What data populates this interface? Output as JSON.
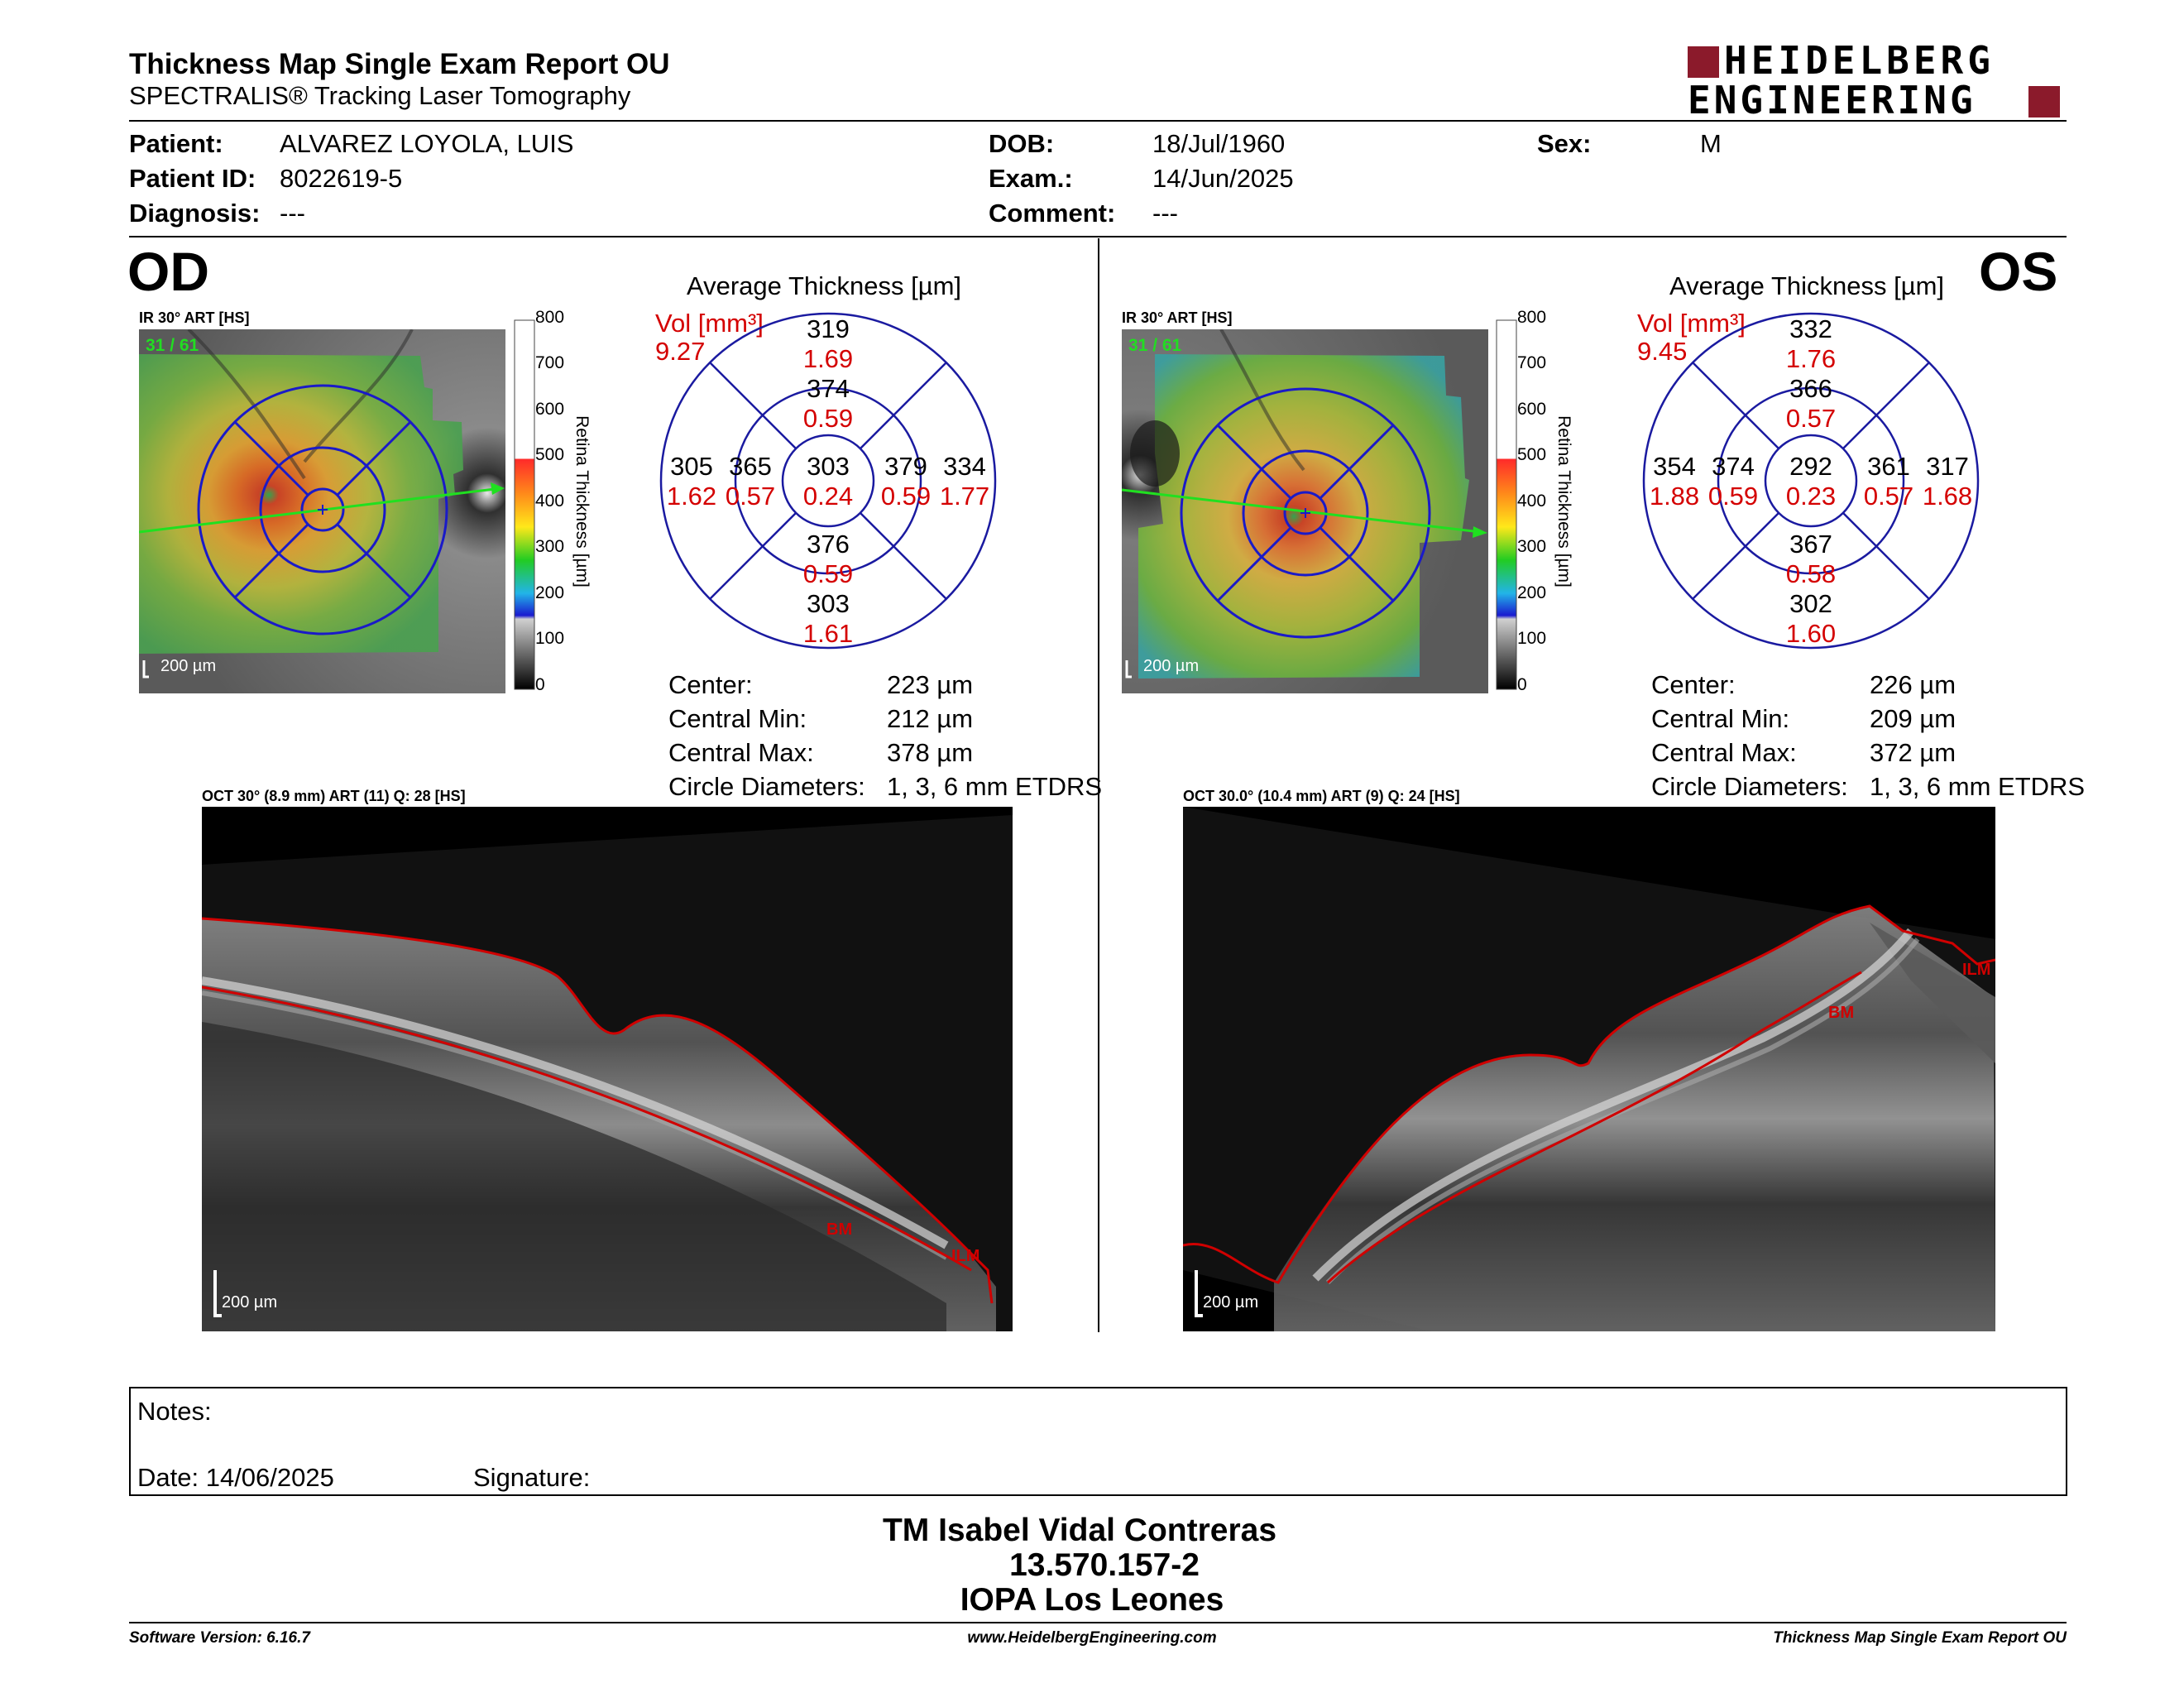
{
  "header": {
    "title": "Thickness Map Single Exam Report OU",
    "subtitle": "SPECTRALIS® Tracking Laser Tomography",
    "logo_line1": "HEIDELBERG",
    "logo_line2": "ENGINEERING",
    "logo_color": "#8b1a2b"
  },
  "patient": {
    "patient_label": "Patient:",
    "patient_value": "ALVAREZ LOYOLA, LUIS",
    "id_label": "Patient ID:",
    "id_value": "8022619-5",
    "diagnosis_label": "Diagnosis:",
    "diagnosis_value": "---",
    "dob_label": "DOB:",
    "dob_value": "18/Jul/1960",
    "exam_label": "Exam.:",
    "exam_value": "14/Jun/2025",
    "comment_label": "Comment:",
    "comment_value": "---",
    "sex_label": "Sex:",
    "sex_value": "M"
  },
  "od": {
    "eye": "OD",
    "ir_caption": "IR 30° ART [HS]",
    "frames": "31 / 61",
    "scale": "200 µm",
    "avg_title": "Average Thickness [µm]",
    "vol_label": "Vol [mm³]",
    "vol_value": "9.27",
    "etdrs": {
      "center": [
        "303",
        "0.24"
      ],
      "inner_sup": [
        "374",
        "0.59"
      ],
      "inner_inf": [
        "376",
        "0.59"
      ],
      "inner_left": [
        "365",
        "0.57"
      ],
      "inner_right": [
        "379",
        "0.59"
      ],
      "outer_sup": [
        "319",
        "1.69"
      ],
      "outer_inf": [
        "303",
        "1.61"
      ],
      "outer_left": [
        "305",
        "1.62"
      ],
      "outer_right": [
        "334",
        "1.77"
      ]
    },
    "stats": [
      {
        "label": "Center:",
        "value": "223 µm"
      },
      {
        "label": "Central Min:",
        "value": "212 µm"
      },
      {
        "label": "Central Max:",
        "value": "378 µm"
      },
      {
        "label": "Circle Diameters:",
        "value": "1, 3, 6 mm ETDRS"
      }
    ],
    "oct_caption": "OCT 30° (8.9 mm) ART (11) Q: 28 [HS]",
    "oct_scale": "200 µm",
    "bm": "BM",
    "ilm": "ILM"
  },
  "os": {
    "eye": "OS",
    "ir_caption": "IR 30° ART [HS]",
    "frames": "31 / 61",
    "scale": "200 µm",
    "avg_title": "Average Thickness [µm]",
    "vol_label": "Vol [mm³]",
    "vol_value": "9.45",
    "etdrs": {
      "center": [
        "292",
        "0.23"
      ],
      "inner_sup": [
        "366",
        "0.57"
      ],
      "inner_inf": [
        "367",
        "0.58"
      ],
      "inner_left": [
        "374",
        "0.59"
      ],
      "inner_right": [
        "361",
        "0.57"
      ],
      "outer_sup": [
        "332",
        "1.76"
      ],
      "outer_inf": [
        "302",
        "1.60"
      ],
      "outer_left": [
        "354",
        "1.88"
      ],
      "outer_right": [
        "317",
        "1.68"
      ]
    },
    "stats": [
      {
        "label": "Center:",
        "value": "226 µm"
      },
      {
        "label": "Central Min:",
        "value": "209 µm"
      },
      {
        "label": "Central Max:",
        "value": "372 µm"
      },
      {
        "label": "Circle Diameters:",
        "value": "1, 3, 6 mm ETDRS"
      }
    ],
    "oct_caption": "OCT 30.0° (10.4 mm) ART (9) Q: 24 [HS]",
    "oct_scale": "200 µm",
    "bm": "BM",
    "ilm": "ILM"
  },
  "colorbar": {
    "ticks": [
      "800",
      "700",
      "600",
      "500",
      "400",
      "300",
      "200",
      "100",
      "0"
    ],
    "label": "Retina Thickness [µm]"
  },
  "notes": {
    "notes_label": "Notes:",
    "date_label": "Date: 14/06/2025",
    "signature_label": "Signature:"
  },
  "signature_block": {
    "name": "TM Isabel Vidal Contreras",
    "id": "13.570.157-2",
    "institution": "IOPA Los Leones"
  },
  "footer": {
    "software": "Software Version: 6.16.7",
    "website": "www.HeidelbergEngineering.com",
    "report": "Thickness Map Single Exam Report OU"
  }
}
